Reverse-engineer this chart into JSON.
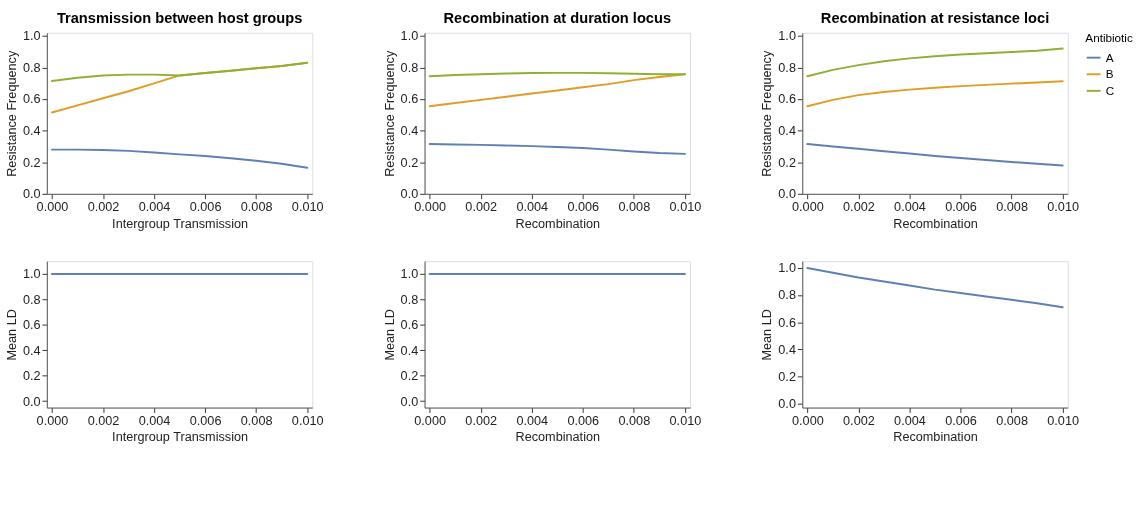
{
  "chart_data": [
    {
      "type": "line",
      "title": "Transmission between host groups",
      "xlabel": "Intergroup Transmission",
      "ylabel": "Resistance Frequency",
      "x": [
        0,
        0.001,
        0.002,
        0.003,
        0.004,
        0.005,
        0.006,
        0.007,
        0.008,
        0.009,
        0.01
      ],
      "series": [
        {
          "color": "#5e81b5",
          "values": [
            0.28,
            0.28,
            0.278,
            0.272,
            0.262,
            0.25,
            0.24,
            0.225,
            0.21,
            0.19,
            0.165
          ]
        },
        {
          "color": "#e19c24",
          "values": [
            0.515,
            0.56,
            0.605,
            0.65,
            0.7,
            0.75,
            0.765,
            0.78,
            0.795,
            0.81,
            0.83
          ]
        },
        {
          "color": "#8fb032",
          "values": [
            0.715,
            0.735,
            0.75,
            0.755,
            0.755,
            0.75,
            0.765,
            0.78,
            0.795,
            0.81,
            0.83
          ]
        }
      ],
      "xlim": [
        -0.0002,
        0.0102
      ],
      "ylim": [
        0,
        1.02
      ],
      "xticks": [
        {
          "value": 0,
          "label": "0.000"
        },
        {
          "value": 0.002,
          "label": "0.002"
        },
        {
          "value": 0.004,
          "label": "0.004"
        },
        {
          "value": 0.006,
          "label": "0.006"
        },
        {
          "value": 0.008,
          "label": "0.008"
        },
        {
          "value": 0.01,
          "label": "0.010"
        }
      ],
      "yticks": [
        {
          "value": 0,
          "label": "0.0"
        },
        {
          "value": 0.2,
          "label": "0.2"
        },
        {
          "value": 0.4,
          "label": "0.4"
        },
        {
          "value": 0.6,
          "label": "0.6"
        },
        {
          "value": 0.8,
          "label": "0.8"
        },
        {
          "value": 1,
          "label": "1.0"
        }
      ],
      "grid": false,
      "legend": false
    },
    {
      "type": "line",
      "title": "Recombination at duration locus",
      "xlabel": "Recombination",
      "ylabel": "Resistance Frequency",
      "x": [
        0,
        0.001,
        0.002,
        0.003,
        0.004,
        0.005,
        0.006,
        0.007,
        0.008,
        0.009,
        0.01
      ],
      "series": [
        {
          "color": "#5e81b5",
          "values": [
            0.315,
            0.313,
            0.31,
            0.306,
            0.302,
            0.297,
            0.29,
            0.28,
            0.268,
            0.258,
            0.253
          ]
        },
        {
          "color": "#e19c24",
          "values": [
            0.555,
            0.575,
            0.595,
            0.615,
            0.635,
            0.655,
            0.675,
            0.695,
            0.72,
            0.74,
            0.757
          ]
        },
        {
          "color": "#8fb032",
          "values": [
            0.745,
            0.752,
            0.758,
            0.762,
            0.765,
            0.766,
            0.766,
            0.764,
            0.76,
            0.757,
            0.757
          ]
        }
      ],
      "xlim": [
        -0.0002,
        0.0102
      ],
      "ylim": [
        0,
        1.02
      ],
      "xticks": [
        {
          "value": 0,
          "label": "0.000"
        },
        {
          "value": 0.002,
          "label": "0.002"
        },
        {
          "value": 0.004,
          "label": "0.004"
        },
        {
          "value": 0.006,
          "label": "0.006"
        },
        {
          "value": 0.008,
          "label": "0.008"
        },
        {
          "value": 0.01,
          "label": "0.010"
        }
      ],
      "yticks": [
        {
          "value": 0,
          "label": "0.0"
        },
        {
          "value": 0.2,
          "label": "0.2"
        },
        {
          "value": 0.4,
          "label": "0.4"
        },
        {
          "value": 0.6,
          "label": "0.6"
        },
        {
          "value": 0.8,
          "label": "0.8"
        },
        {
          "value": 1,
          "label": "1.0"
        }
      ],
      "grid": false,
      "legend": false
    },
    {
      "type": "line",
      "title": "Recombination at resistance loci",
      "xlabel": "Recombination",
      "ylabel": "Resistance Frequency",
      "legend_title": "Antibiotic",
      "x": [
        0,
        0.001,
        0.002,
        0.003,
        0.004,
        0.005,
        0.006,
        0.007,
        0.008,
        0.009,
        0.01
      ],
      "series": [
        {
          "name": "A",
          "color": "#5e81b5",
          "values": [
            0.315,
            0.3,
            0.285,
            0.27,
            0.255,
            0.24,
            0.227,
            0.214,
            0.202,
            0.19,
            0.18
          ]
        },
        {
          "name": "B",
          "color": "#e19c24",
          "values": [
            0.555,
            0.595,
            0.625,
            0.645,
            0.66,
            0.672,
            0.682,
            0.69,
            0.698,
            0.705,
            0.713
          ]
        },
        {
          "name": "C",
          "color": "#8fb032",
          "values": [
            0.745,
            0.785,
            0.815,
            0.84,
            0.858,
            0.872,
            0.882,
            0.89,
            0.898,
            0.906,
            0.92
          ]
        }
      ],
      "xlim": [
        -0.0002,
        0.0102
      ],
      "ylim": [
        0,
        1.02
      ],
      "xticks": [
        {
          "value": 0,
          "label": "0.000"
        },
        {
          "value": 0.002,
          "label": "0.002"
        },
        {
          "value": 0.004,
          "label": "0.004"
        },
        {
          "value": 0.006,
          "label": "0.006"
        },
        {
          "value": 0.008,
          "label": "0.008"
        },
        {
          "value": 0.01,
          "label": "0.010"
        }
      ],
      "yticks": [
        {
          "value": 0,
          "label": "0.0"
        },
        {
          "value": 0.2,
          "label": "0.2"
        },
        {
          "value": 0.4,
          "label": "0.4"
        },
        {
          "value": 0.6,
          "label": "0.6"
        },
        {
          "value": 0.8,
          "label": "0.8"
        },
        {
          "value": 1,
          "label": "1.0"
        }
      ],
      "grid": false,
      "legend": "right"
    },
    {
      "type": "line",
      "xlabel": "Intergroup Transmission",
      "ylabel": "Mean LD",
      "x": [
        0,
        0.001,
        0.002,
        0.003,
        0.004,
        0.005,
        0.006,
        0.007,
        0.008,
        0.009,
        0.01
      ],
      "series": [
        {
          "color": "#5e81b5",
          "values": [
            1,
            1,
            1,
            1,
            1,
            1,
            1,
            1,
            1,
            1,
            1
          ]
        }
      ],
      "xlim": [
        -0.0002,
        0.0102
      ],
      "ylim": [
        -0.05,
        1.1
      ],
      "xticks": [
        {
          "value": 0,
          "label": "0.000"
        },
        {
          "value": 0.002,
          "label": "0.002"
        },
        {
          "value": 0.004,
          "label": "0.004"
        },
        {
          "value": 0.006,
          "label": "0.006"
        },
        {
          "value": 0.008,
          "label": "0.008"
        },
        {
          "value": 0.01,
          "label": "0.010"
        }
      ],
      "yticks": [
        {
          "value": 0,
          "label": "0.0"
        },
        {
          "value": 0.2,
          "label": "0.2"
        },
        {
          "value": 0.4,
          "label": "0.4"
        },
        {
          "value": 0.6,
          "label": "0.6"
        },
        {
          "value": 0.8,
          "label": "0.8"
        },
        {
          "value": 1,
          "label": "1.0"
        }
      ],
      "grid": false,
      "legend": false
    },
    {
      "type": "line",
      "xlabel": "Recombination",
      "ylabel": "Mean LD",
      "x": [
        0,
        0.001,
        0.002,
        0.003,
        0.004,
        0.005,
        0.006,
        0.007,
        0.008,
        0.009,
        0.01
      ],
      "series": [
        {
          "color": "#5e81b5",
          "values": [
            1,
            1,
            1,
            1,
            1,
            1,
            1,
            1,
            1,
            1,
            1
          ]
        }
      ],
      "xlim": [
        -0.0002,
        0.0102
      ],
      "ylim": [
        -0.05,
        1.1
      ],
      "xticks": [
        {
          "value": 0,
          "label": "0.000"
        },
        {
          "value": 0.002,
          "label": "0.002"
        },
        {
          "value": 0.004,
          "label": "0.004"
        },
        {
          "value": 0.006,
          "label": "0.006"
        },
        {
          "value": 0.008,
          "label": "0.008"
        },
        {
          "value": 0.01,
          "label": "0.010"
        }
      ],
      "yticks": [
        {
          "value": 0,
          "label": "0.0"
        },
        {
          "value": 0.2,
          "label": "0.2"
        },
        {
          "value": 0.4,
          "label": "0.4"
        },
        {
          "value": 0.6,
          "label": "0.6"
        },
        {
          "value": 0.8,
          "label": "0.8"
        },
        {
          "value": 1,
          "label": "1.0"
        }
      ],
      "grid": false,
      "legend": false
    },
    {
      "type": "line",
      "xlabel": "Recombination",
      "ylabel": "Mean LD",
      "x": [
        0,
        0.001,
        0.002,
        0.003,
        0.004,
        0.005,
        0.006,
        0.007,
        0.008,
        0.009,
        0.01
      ],
      "series": [
        {
          "color": "#5e81b5",
          "values": [
            1.0,
            0.965,
            0.93,
            0.9,
            0.87,
            0.84,
            0.815,
            0.79,
            0.765,
            0.74,
            0.71
          ]
        }
      ],
      "xlim": [
        -0.0002,
        0.0102
      ],
      "ylim": [
        -0.03,
        1.05
      ],
      "xticks": [
        {
          "value": 0,
          "label": "0.000"
        },
        {
          "value": 0.002,
          "label": "0.002"
        },
        {
          "value": 0.004,
          "label": "0.004"
        },
        {
          "value": 0.006,
          "label": "0.006"
        },
        {
          "value": 0.008,
          "label": "0.008"
        },
        {
          "value": 0.01,
          "label": "0.010"
        }
      ],
      "yticks": [
        {
          "value": 0,
          "label": "0.0"
        },
        {
          "value": 0.2,
          "label": "0.2"
        },
        {
          "value": 0.4,
          "label": "0.4"
        },
        {
          "value": 0.6,
          "label": "0.6"
        },
        {
          "value": 0.8,
          "label": "0.8"
        },
        {
          "value": 1,
          "label": "1.0"
        }
      ],
      "grid": false,
      "legend": false
    }
  ]
}
